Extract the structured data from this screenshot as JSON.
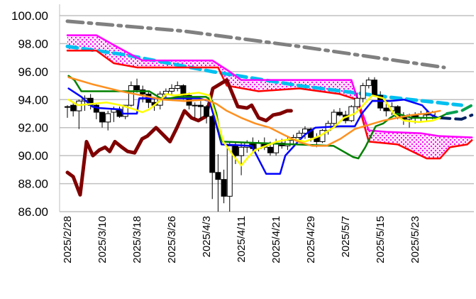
{
  "chart_data": {
    "type": "candlestick-ichimoku",
    "title": "",
    "xlabel": "",
    "ylabel": "",
    "ylim": [
      86,
      100
    ],
    "yticks": [
      "86.00",
      "88.00",
      "90.00",
      "92.00",
      "94.00",
      "96.00",
      "98.00",
      "100.00"
    ],
    "ytick_values": [
      86,
      88,
      90,
      92,
      94,
      96,
      98,
      100
    ],
    "grid": "horizontal",
    "x_tick_labels": [
      "2025/2/28",
      "2025/3/10",
      "2025/3/18",
      "2025/3/26",
      "2025/4/3",
      "2025/4/11",
      "2025/4/21",
      "2025/4/29",
      "2025/5/7",
      "2025/5/15",
      "2025/5/23"
    ],
    "x_tick_index": [
      0,
      6,
      12,
      18,
      24,
      30,
      36,
      42,
      48,
      54,
      60
    ],
    "candles_ohlc": [
      [
        93.5,
        93.6,
        92.7,
        93.5
      ],
      [
        93.6,
        93.8,
        92.8,
        93.2
      ],
      [
        93.2,
        94.0,
        91.9,
        93.9
      ],
      [
        93.9,
        94.3,
        93.2,
        94.1
      ],
      [
        94.1,
        94.4,
        93.3,
        93.6
      ],
      [
        93.6,
        93.7,
        92.6,
        93.1
      ],
      [
        93.1,
        93.1,
        92.0,
        92.4
      ],
      [
        92.4,
        93.2,
        91.8,
        93.0
      ],
      [
        93.1,
        93.5,
        92.4,
        93.3
      ],
      [
        93.3,
        93.5,
        92.7,
        92.8
      ],
      [
        92.8,
        93.6,
        92.6,
        93.6
      ],
      [
        93.6,
        95.3,
        93.5,
        95.0
      ],
      [
        95.0,
        95.5,
        94.5,
        94.7
      ],
      [
        94.7,
        95.0,
        93.8,
        94.4
      ],
      [
        94.4,
        94.6,
        93.4,
        93.8
      ],
      [
        93.8,
        94.2,
        93.2,
        93.6
      ],
      [
        93.6,
        94.6,
        93.3,
        94.4
      ],
      [
        94.4,
        94.8,
        94.0,
        94.6
      ],
      [
        94.6,
        95.1,
        94.3,
        94.8
      ],
      [
        94.8,
        95.3,
        94.6,
        95.0
      ],
      [
        95.0,
        95.1,
        94.0,
        94.3
      ],
      [
        94.3,
        94.5,
        93.3,
        93.6
      ],
      [
        93.6,
        93.8,
        92.7,
        93.6
      ],
      [
        93.6,
        93.9,
        92.6,
        93.5
      ],
      [
        93.5,
        93.6,
        92.3,
        92.8
      ],
      [
        92.8,
        92.9,
        86.9,
        88.8
      ],
      [
        88.8,
        90.1,
        86.0,
        88.3
      ],
      [
        88.3,
        89.0,
        86.6,
        87.1
      ],
      [
        87.1,
        91.0,
        86.0,
        90.7
      ],
      [
        90.7,
        91.0,
        89.4,
        90.0
      ],
      [
        90.0,
        90.9,
        88.6,
        90.6
      ],
      [
        90.6,
        91.1,
        90.2,
        90.9
      ],
      [
        90.9,
        91.3,
        90.2,
        90.5
      ],
      [
        90.5,
        91.1,
        90.3,
        90.9
      ],
      [
        90.9,
        91.3,
        90.4,
        90.6
      ],
      [
        90.6,
        91.0,
        90.0,
        90.2
      ],
      [
        90.2,
        91.2,
        90.0,
        90.9
      ],
      [
        90.9,
        91.2,
        90.5,
        90.7
      ],
      [
        90.7,
        91.3,
        90.4,
        91.1
      ],
      [
        91.1,
        91.5,
        90.8,
        91.3
      ],
      [
        91.3,
        91.8,
        91.0,
        91.6
      ],
      [
        91.6,
        92.1,
        91.2,
        91.9
      ],
      [
        91.9,
        92.0,
        91.0,
        91.3
      ],
      [
        91.3,
        91.6,
        90.6,
        91.0
      ],
      [
        91.0,
        91.9,
        90.9,
        91.8
      ],
      [
        91.8,
        92.5,
        91.5,
        92.3
      ],
      [
        92.3,
        93.3,
        92.0,
        93.1
      ],
      [
        93.1,
        93.4,
        92.8,
        92.9
      ],
      [
        92.9,
        93.2,
        92.3,
        92.5
      ],
      [
        92.5,
        93.6,
        92.4,
        93.5
      ],
      [
        93.5,
        94.5,
        93.3,
        94.1
      ],
      [
        94.1,
        95.2,
        93.8,
        95.0
      ],
      [
        95.0,
        95.6,
        94.8,
        95.4
      ],
      [
        95.4,
        95.6,
        94.2,
        94.3
      ],
      [
        94.3,
        94.6,
        93.2,
        93.4
      ],
      [
        93.4,
        93.7,
        92.8,
        93.2
      ],
      [
        93.2,
        93.8,
        92.9,
        93.5
      ],
      [
        93.5,
        93.6,
        92.6,
        92.8
      ],
      [
        92.8,
        93.1,
        92.2,
        92.6
      ],
      [
        92.6,
        93.0,
        92.0,
        92.9
      ],
      [
        92.9,
        93.1,
        92.3,
        92.7
      ],
      [
        92.7,
        93.2,
        92.4,
        93.0
      ],
      [
        93.0,
        93.3,
        92.5,
        92.9
      ],
      [
        92.9,
        93.2,
        92.6,
        93.1
      ]
    ],
    "series": [
      {
        "name": "long-moving-average",
        "color": "#808080",
        "style": "dashdot",
        "points": [
          [
            0,
            99.6
          ],
          [
            20,
            98.9
          ],
          [
            40,
            97.8
          ],
          [
            55,
            96.9
          ],
          [
            65,
            96.3
          ]
        ]
      },
      {
        "name": "mid-moving-average",
        "color": "#00c0f0",
        "style": "dash",
        "points": [
          [
            0,
            97.8
          ],
          [
            10,
            97.2
          ],
          [
            25,
            96.0
          ],
          [
            40,
            95.0
          ],
          [
            55,
            94.2
          ],
          [
            68,
            93.6
          ]
        ]
      },
      {
        "name": "senkou-span-a",
        "color": "#ff00ff",
        "style": "solid",
        "points": [
          [
            0,
            98.6
          ],
          [
            5,
            98.6
          ],
          [
            8,
            97.9
          ],
          [
            12,
            97.0
          ],
          [
            13,
            96.8
          ],
          [
            25,
            96.8
          ],
          [
            28,
            96.0
          ],
          [
            30,
            95.4
          ],
          [
            49,
            95.4
          ],
          [
            50.5,
            93.5
          ],
          [
            52,
            91.8
          ],
          [
            55,
            91.7
          ],
          [
            61,
            91.6
          ],
          [
            64,
            91.4
          ],
          [
            69.8,
            91.3
          ]
        ]
      },
      {
        "name": "senkou-span-b",
        "color": "#ff0000",
        "style": "solid",
        "points": [
          [
            0,
            97.5
          ],
          [
            5,
            97.5
          ],
          [
            8,
            96.6
          ],
          [
            12,
            96.3
          ],
          [
            26,
            96.3
          ],
          [
            27.5,
            95.0
          ],
          [
            33,
            94.6
          ],
          [
            40,
            94.8
          ],
          [
            47,
            94.4
          ],
          [
            50,
            94.0
          ],
          [
            51,
            92.5
          ],
          [
            52,
            91.0
          ],
          [
            57,
            90.8
          ],
          [
            62,
            89.8
          ],
          [
            64.3,
            89.8
          ],
          [
            66,
            90.6
          ],
          [
            69,
            90.8
          ],
          [
            69.8,
            91.1
          ]
        ]
      },
      {
        "name": "chikou-span",
        "color": "#800000",
        "style": "solid",
        "points": [
          [
            0,
            88.8
          ],
          [
            1,
            88.5
          ],
          [
            2.2,
            87.2
          ],
          [
            3.3,
            91.0
          ],
          [
            4.4,
            90.0
          ],
          [
            5.5,
            90.4
          ],
          [
            6.5,
            90.6
          ],
          [
            7.3,
            90.3
          ],
          [
            8.2,
            91.0
          ],
          [
            9.4,
            90.6
          ],
          [
            10.4,
            90.3
          ],
          [
            11.6,
            90.2
          ],
          [
            12.9,
            91.2
          ],
          [
            13.8,
            91.4
          ],
          [
            15.3,
            92.0
          ],
          [
            16.5,
            91.5
          ],
          [
            17.7,
            91.0
          ],
          [
            18.9,
            92.0
          ],
          [
            20.2,
            93.2
          ],
          [
            21.4,
            92.7
          ],
          [
            22.6,
            92.5
          ],
          [
            23.9,
            92.8
          ],
          [
            25.1,
            94.8
          ],
          [
            27.5,
            95.4
          ],
          [
            29.4,
            93.5
          ],
          [
            31,
            93.4
          ],
          [
            31.8,
            93.6
          ],
          [
            33,
            92.7
          ],
          [
            34.3,
            92.5
          ],
          [
            35.5,
            92.9
          ],
          [
            36.7,
            93.0
          ],
          [
            37.9,
            93.2
          ],
          [
            38.6,
            93.2
          ]
        ]
      },
      {
        "name": "tenkan-sen",
        "color": "#0000ff",
        "style": "solid",
        "points": [
          [
            0.2,
            94.8
          ],
          [
            2.4,
            94.2
          ],
          [
            4.3,
            93.5
          ],
          [
            5.5,
            93.4
          ],
          [
            9.2,
            93.3
          ],
          [
            9.6,
            93.0
          ],
          [
            12,
            93.0
          ],
          [
            12.4,
            94.1
          ],
          [
            22.6,
            94.1
          ],
          [
            24.5,
            93.9
          ],
          [
            25.5,
            92.5
          ],
          [
            26.6,
            90.8
          ],
          [
            31.8,
            90.7
          ],
          [
            34.3,
            88.7
          ],
          [
            36.7,
            88.7
          ],
          [
            37.6,
            90.0
          ],
          [
            39.8,
            91.0
          ],
          [
            41,
            91.5
          ],
          [
            42.8,
            92.0
          ],
          [
            47.1,
            92.1
          ],
          [
            49.6,
            92.1
          ],
          [
            50.8,
            93.0
          ],
          [
            52.6,
            93.9
          ],
          [
            55.7,
            93.9
          ],
          [
            58.1,
            94.0
          ],
          [
            61.2,
            93.6
          ],
          [
            62.8,
            92.9
          ],
          [
            64,
            92.7
          ]
        ]
      },
      {
        "name": "kijun-sen",
        "color": "#008000",
        "style": "solid",
        "points": [
          [
            0.2,
            95.7
          ],
          [
            1.2,
            95.4
          ],
          [
            2.4,
            94.6
          ],
          [
            14.1,
            94.6
          ],
          [
            16.5,
            94.0
          ],
          [
            19,
            94.2
          ],
          [
            23.9,
            94.2
          ],
          [
            25,
            93.9
          ],
          [
            25.7,
            93.0
          ],
          [
            26.6,
            91.0
          ],
          [
            45.9,
            90.7
          ],
          [
            49.3,
            89.9
          ],
          [
            50.2,
            89.8
          ],
          [
            51.4,
            90.6
          ],
          [
            53.2,
            92.1
          ],
          [
            54.5,
            92.3
          ],
          [
            55.7,
            92.7
          ],
          [
            56.9,
            93.0
          ],
          [
            59.4,
            92.7
          ],
          [
            64,
            92.7
          ],
          [
            65.5,
            93.0
          ]
        ]
      },
      {
        "name": "kijun-sen-forward",
        "color": "#00a050",
        "style": "dash",
        "points": [
          [
            65.5,
            93.0
          ],
          [
            68,
            93.2
          ],
          [
            69.8,
            93.6
          ]
        ]
      },
      {
        "name": "tenkan-sen-forward",
        "color": "#002060",
        "style": "dash",
        "points": [
          [
            64.3,
            92.7
          ],
          [
            68,
            92.6
          ],
          [
            69.8,
            92.9
          ]
        ]
      },
      {
        "name": "short-moving-average",
        "color": "#ffff00",
        "style": "solid",
        "points": [
          [
            0.2,
            94.0
          ],
          [
            1.8,
            93.6
          ],
          [
            4.3,
            93.7
          ],
          [
            6.7,
            93.8
          ],
          [
            9.2,
            93.6
          ],
          [
            11.6,
            93.3
          ],
          [
            12.9,
            93.1
          ],
          [
            14.1,
            93.3
          ],
          [
            15.9,
            93.9
          ],
          [
            17.1,
            94.4
          ],
          [
            18.4,
            94.3
          ],
          [
            20.8,
            94.4
          ],
          [
            22.6,
            94.5
          ],
          [
            24.5,
            94.3
          ],
          [
            25.7,
            92.7
          ],
          [
            26.9,
            91.0
          ],
          [
            28.8,
            89.9
          ],
          [
            30,
            89.3
          ],
          [
            31.2,
            89.9
          ],
          [
            32.4,
            90.4
          ],
          [
            34.3,
            90.7
          ],
          [
            36.1,
            91.0
          ],
          [
            38.6,
            91.2
          ],
          [
            41,
            91.0
          ],
          [
            43.5,
            91.4
          ],
          [
            45.9,
            92.0
          ],
          [
            47.7,
            92.7
          ],
          [
            49.6,
            93.0
          ],
          [
            50.8,
            93.5
          ],
          [
            52.6,
            94.3
          ],
          [
            54.5,
            94.1
          ],
          [
            56.3,
            93.0
          ],
          [
            58.1,
            92.5
          ],
          [
            60.6,
            92.4
          ],
          [
            63,
            92.5
          ],
          [
            64.3,
            92.7
          ]
        ]
      },
      {
        "name": "long-average-orange",
        "color": "#ff9020",
        "style": "solid",
        "points": [
          [
            0.2,
            95.6
          ],
          [
            4.3,
            95.1
          ],
          [
            9.2,
            94.6
          ],
          [
            12.9,
            94.3
          ],
          [
            16.5,
            94.0
          ],
          [
            20.2,
            93.9
          ],
          [
            23.9,
            94.0
          ],
          [
            25.7,
            93.7
          ],
          [
            27.5,
            93.2
          ],
          [
            30,
            92.7
          ],
          [
            32.4,
            92.3
          ],
          [
            34.9,
            92.0
          ],
          [
            37.3,
            91.5
          ],
          [
            39.8,
            91.0
          ],
          [
            42.2,
            90.7
          ],
          [
            44.7,
            90.7
          ],
          [
            47.1,
            91.2
          ],
          [
            49.6,
            91.9
          ],
          [
            52,
            92.2
          ],
          [
            54.5,
            92.5
          ],
          [
            56.9,
            92.7
          ],
          [
            59.4,
            92.9
          ],
          [
            61.8,
            93.0
          ],
          [
            64.3,
            93.2
          ]
        ]
      }
    ],
    "cloud": {
      "between": [
        "senkou-span-a",
        "senkou-span-b"
      ],
      "fill": "pink dotted"
    }
  }
}
